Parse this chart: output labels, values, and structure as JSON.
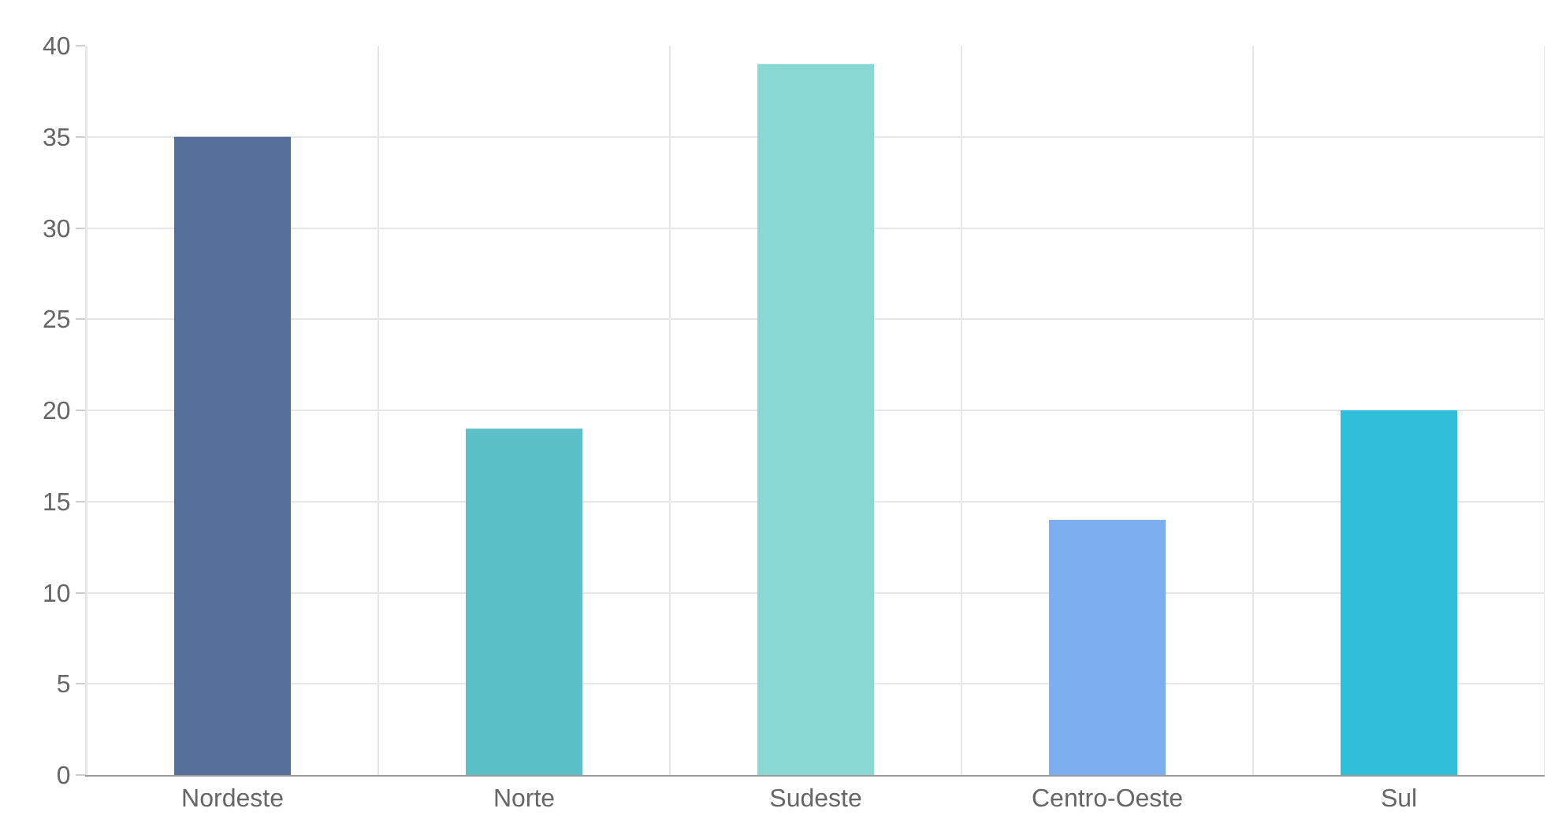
{
  "chart_data": {
    "type": "bar",
    "categories": [
      "Nordeste",
      "Norte",
      "Sudeste",
      "Centro-Oeste",
      "Sul"
    ],
    "values": [
      35,
      19,
      39,
      14,
      20
    ],
    "colors": [
      "#557099",
      "#5bc0c7",
      "#8ad8d4",
      "#7dafef",
      "#30bedb"
    ],
    "ylim": [
      0,
      40
    ],
    "yticks": [
      0,
      5,
      10,
      15,
      20,
      25,
      30,
      35,
      40
    ],
    "grid": true
  }
}
